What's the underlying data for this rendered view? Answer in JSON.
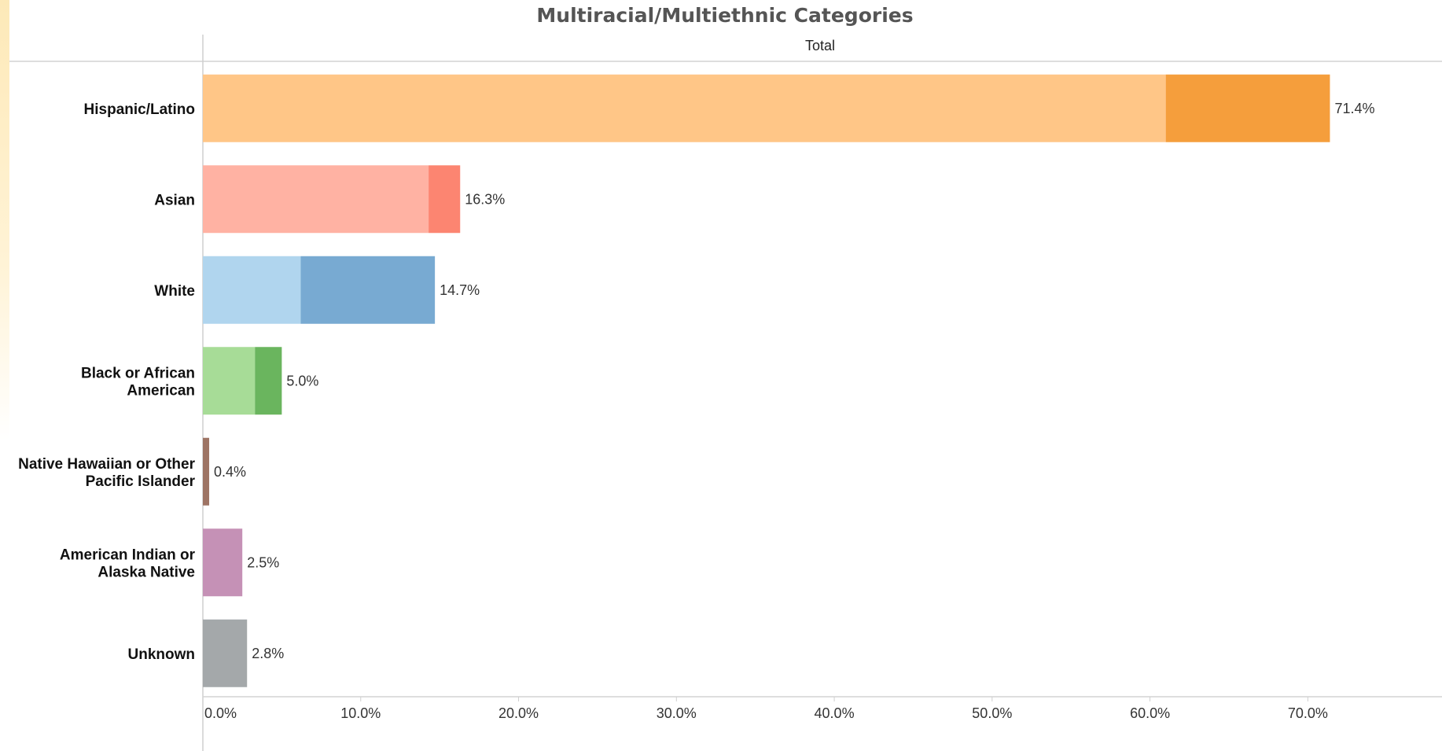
{
  "chart_data": {
    "type": "bar",
    "orientation": "horizontal",
    "stacked": true,
    "title": "Multiracial/Multiethnic Categories",
    "column_header": "Total",
    "categories": [
      "Hispanic/Latino",
      "Asian",
      "White",
      "Black or African American",
      "Native Hawaiian or Other Pacific Islander",
      "American Indian or Alaska Native",
      "Unknown"
    ],
    "category_lines": [
      [
        "Hispanic/Latino"
      ],
      [
        "Asian"
      ],
      [
        "White"
      ],
      [
        "Black or African",
        "American"
      ],
      [
        "Native Hawaiian or Other",
        "Pacific Islander"
      ],
      [
        "American Indian or",
        "Alaska Native"
      ],
      [
        "Unknown"
      ]
    ],
    "segments": [
      [
        61.0,
        10.4
      ],
      [
        14.3,
        2.0
      ],
      [
        6.2,
        8.5
      ],
      [
        3.3,
        1.7
      ],
      [
        0.0,
        0.4
      ],
      [
        2.5,
        0.0
      ],
      [
        2.8,
        0.0
      ]
    ],
    "totals": [
      71.4,
      16.3,
      14.7,
      5.0,
      0.4,
      2.5,
      2.8
    ],
    "value_labels": [
      "71.4%",
      "16.3%",
      "14.7%",
      "5.0%",
      "0.4%",
      "2.5%",
      "2.8%"
    ],
    "colors": [
      [
        "#ffc687",
        "#f59e3c"
      ],
      [
        "#ffb2a3",
        "#fc8571"
      ],
      [
        "#b0d5ee",
        "#78aad2"
      ],
      [
        "#a7dc97",
        "#6ab55e"
      ],
      [
        "#c4a291",
        "#9e7464"
      ],
      [
        "#c591b6",
        "#c591b6"
      ],
      [
        "#a4a8aa",
        "#a4a8aa"
      ]
    ],
    "xlim": [
      0,
      78.5
    ],
    "xticks": [
      0,
      10,
      20,
      30,
      40,
      50,
      60,
      70
    ],
    "xtick_labels": [
      "0.0%",
      "10.0%",
      "20.0%",
      "30.0%",
      "40.0%",
      "50.0%",
      "60.0%",
      "70.0%"
    ],
    "xlabel": "",
    "ylabel": "",
    "grid": false,
    "legend": "none"
  }
}
